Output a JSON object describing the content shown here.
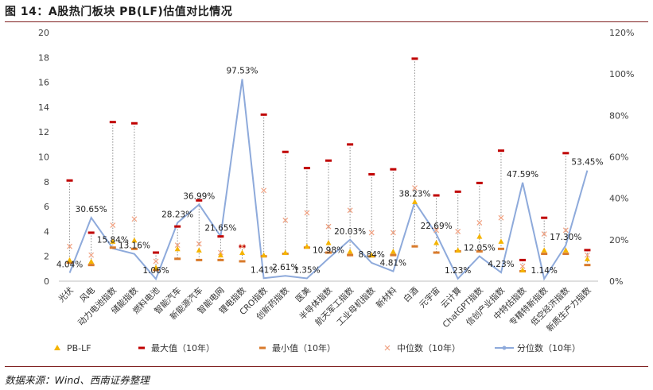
{
  "title": "图 14：A股热门板块 PB(LF)估值对比情况",
  "source": "数据来源：Wind、西南证券整理",
  "chart_data": {
    "type": "line",
    "categories": [
      "光伏",
      "风电",
      "动力电池指数",
      "储能指数",
      "燃料电池",
      "智能汽车",
      "新能源汽车",
      "智能电网",
      "锂电指数",
      "CRO指数",
      "创新药指数",
      "医美",
      "半导体指数",
      "航天军工指数",
      "工业母机指数",
      "新材料",
      "白酒",
      "元宇宙",
      "云计算",
      "ChatGPT指数",
      "信创产业指数",
      "中特估指数",
      "专精特新指数",
      "低空经济指数",
      "新质生产力指数"
    ],
    "series": [
      {
        "name": "PB-LF",
        "axis": "left",
        "marker": "triangle",
        "color": "#f5b400",
        "values": [
          1.7,
          1.6,
          3.2,
          3.3,
          1.1,
          2.6,
          2.5,
          2.1,
          2.3,
          2.1,
          2.3,
          2.8,
          3.1,
          2.4,
          2.1,
          2.4,
          6.4,
          3.1,
          2.5,
          3.6,
          3.2,
          0.9,
          2.5,
          2.5,
          1.8
        ]
      },
      {
        "name": "最大值（10年）",
        "axis": "left",
        "marker": "dash",
        "color": "#c00000",
        "values": [
          8.1,
          3.9,
          12.8,
          12.7,
          2.3,
          4.4,
          6.5,
          3.6,
          2.8,
          13.4,
          10.4,
          9.1,
          9.7,
          11.0,
          8.6,
          9.0,
          17.9,
          6.9,
          7.2,
          7.9,
          10.5,
          1.7,
          5.1,
          10.3,
          2.5
        ]
      },
      {
        "name": "最小值（10年）",
        "axis": "left",
        "marker": "dash",
        "color": "#d97a2b",
        "values": [
          1.5,
          1.3,
          2.7,
          2.6,
          0.9,
          1.8,
          1.7,
          1.7,
          1.6,
          2.0,
          2.2,
          2.7,
          2.3,
          2.1,
          2.0,
          2.1,
          2.8,
          2.3,
          2.4,
          2.4,
          2.6,
          0.8,
          2.2,
          2.2,
          1.3
        ]
      },
      {
        "name": "中位数（10年）",
        "axis": "left",
        "marker": "x",
        "color": "#f0a080",
        "values": [
          2.8,
          2.1,
          4.5,
          5.0,
          1.6,
          2.9,
          3.0,
          2.3,
          2.8,
          7.3,
          4.9,
          5.5,
          4.4,
          5.7,
          3.9,
          3.9,
          7.5,
          4.1,
          4.0,
          4.7,
          5.1,
          1.2,
          3.8,
          4.1,
          2.1
        ]
      },
      {
        "name": "分位数（10年）",
        "axis": "right",
        "marker": "line",
        "color": "#8eaadb",
        "values": [
          4.04,
          30.65,
          15.84,
          13.16,
          1.06,
          28.23,
          36.99,
          21.65,
          97.53,
          1.41,
          2.61,
          1.35,
          10.98,
          20.03,
          8.84,
          4.81,
          38.23,
          22.69,
          1.23,
          12.05,
          4.23,
          47.59,
          1.14,
          17.3,
          53.45
        ]
      }
    ],
    "pct_labels": [
      "4.04%",
      "30.65%",
      "15.84%",
      "13.16%",
      "1.06%",
      "28.23%",
      "36.99%",
      "21.65%",
      "97.53%",
      "1.41%",
      "2.61%",
      "1.35%",
      "10.98%",
      "20.03%",
      "8.84%",
      "4.81%",
      "38.23%",
      "22.69%",
      "1.23%",
      "12.05%",
      "4.23%",
      "47.59%",
      "1.14%",
      "17.30%",
      "53.45%"
    ],
    "y_left": {
      "min": 0,
      "max": 20,
      "ticks": [
        "0",
        "2",
        "4",
        "6",
        "8",
        "10",
        "12",
        "14",
        "16",
        "18",
        "20"
      ]
    },
    "y_right": {
      "min": 0,
      "max": 120,
      "ticks": [
        "0%",
        "20%",
        "40%",
        "60%",
        "80%",
        "100%",
        "120%"
      ]
    },
    "legend_position": "bottom",
    "grid": false
  }
}
